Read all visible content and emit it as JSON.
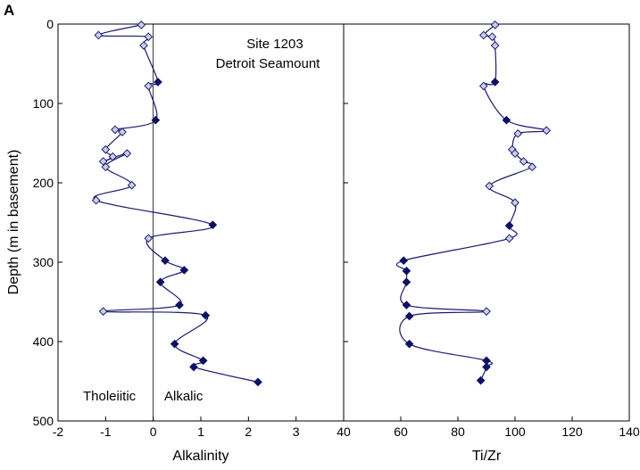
{
  "panel_label": "A",
  "chart_data": [
    {
      "type": "scatter",
      "xlabel": "Alkalinity",
      "ylabel": "Depth (m in basement)",
      "xlim": [
        -2,
        4
      ],
      "ylim": [
        500,
        0
      ],
      "x_ticks": [
        "-2",
        "-1",
        "0",
        "1",
        "2",
        "3"
      ],
      "y_ticks": [
        "0",
        "100",
        "200",
        "300",
        "400",
        "500"
      ],
      "annotations": {
        "site": "Site 1203",
        "location": "Detroit Seamount",
        "left_field": "Tholeiitic",
        "right_field": "Alkalic"
      },
      "divider_x": 0,
      "grid": false,
      "colors": {
        "line": "#1a1a6e",
        "filled_marker": "#0d1163",
        "open_marker_fill": "#c8cde6"
      },
      "series": [
        {
          "marker": "mixed diamond",
          "points": [
            {
              "x": -0.25,
              "y": 1,
              "filled": false
            },
            {
              "x": -1.15,
              "y": 14,
              "filled": false
            },
            {
              "x": -0.1,
              "y": 16,
              "filled": false
            },
            {
              "x": -0.2,
              "y": 27,
              "filled": false
            },
            {
              "x": 0.1,
              "y": 73,
              "filled": true
            },
            {
              "x": -0.1,
              "y": 78,
              "filled": false
            },
            {
              "x": 0.05,
              "y": 121,
              "filled": true
            },
            {
              "x": -0.8,
              "y": 133,
              "filled": false
            },
            {
              "x": -0.65,
              "y": 136,
              "filled": false
            },
            {
              "x": -1.0,
              "y": 158,
              "filled": false
            },
            {
              "x": -0.85,
              "y": 167,
              "filled": false
            },
            {
              "x": -1.05,
              "y": 173,
              "filled": false
            },
            {
              "x": -0.55,
              "y": 163,
              "filled": false
            },
            {
              "x": -1.0,
              "y": 180,
              "filled": false
            },
            {
              "x": -0.45,
              "y": 203,
              "filled": false
            },
            {
              "x": -1.2,
              "y": 222,
              "filled": false
            },
            {
              "x": 1.25,
              "y": 253,
              "filled": true
            },
            {
              "x": -0.1,
              "y": 270,
              "filled": false
            },
            {
              "x": 0.25,
              "y": 298,
              "filled": true
            },
            {
              "x": 0.65,
              "y": 310,
              "filled": true
            },
            {
              "x": 0.15,
              "y": 325,
              "filled": true
            },
            {
              "x": 0.55,
              "y": 354,
              "filled": true
            },
            {
              "x": -1.05,
              "y": 362,
              "filled": false
            },
            {
              "x": 1.1,
              "y": 367,
              "filled": true
            },
            {
              "x": 0.45,
              "y": 403,
              "filled": true
            },
            {
              "x": 1.05,
              "y": 424,
              "filled": true
            },
            {
              "x": 0.85,
              "y": 432,
              "filled": true
            },
            {
              "x": 2.2,
              "y": 451,
              "filled": true
            }
          ]
        }
      ]
    },
    {
      "type": "scatter",
      "xlabel": "Ti/Zr",
      "ylabel": "",
      "xlim": [
        40,
        140
      ],
      "ylim": [
        500,
        0
      ],
      "x_ticks": [
        "40",
        "60",
        "80",
        "100",
        "120",
        "140"
      ],
      "y_ticks": [],
      "grid": false,
      "colors": {
        "line": "#1a1a6e",
        "filled_marker": "#0d1163",
        "open_marker_fill": "#c8cde6"
      },
      "series": [
        {
          "marker": "mixed diamond",
          "points": [
            {
              "x": 93,
              "y": 1,
              "filled": false
            },
            {
              "x": 89,
              "y": 14,
              "filled": false
            },
            {
              "x": 92,
              "y": 16,
              "filled": false
            },
            {
              "x": 93,
              "y": 27,
              "filled": false
            },
            {
              "x": 93,
              "y": 73,
              "filled": true
            },
            {
              "x": 89,
              "y": 78,
              "filled": false
            },
            {
              "x": 97,
              "y": 121,
              "filled": true
            },
            {
              "x": 111,
              "y": 134,
              "filled": false
            },
            {
              "x": 101,
              "y": 138,
              "filled": false
            },
            {
              "x": 99,
              "y": 158,
              "filled": false
            },
            {
              "x": 100,
              "y": 163,
              "filled": false
            },
            {
              "x": 103,
              "y": 173,
              "filled": false
            },
            {
              "x": 106,
              "y": 180,
              "filled": false
            },
            {
              "x": 91,
              "y": 204,
              "filled": false
            },
            {
              "x": 100,
              "y": 225,
              "filled": false
            },
            {
              "x": 98,
              "y": 254,
              "filled": true
            },
            {
              "x": 98,
              "y": 270,
              "filled": false
            },
            {
              "x": 61,
              "y": 298,
              "filled": true
            },
            {
              "x": 62,
              "y": 311,
              "filled": true
            },
            {
              "x": 62,
              "y": 325,
              "filled": true
            },
            {
              "x": 62,
              "y": 354,
              "filled": true
            },
            {
              "x": 90,
              "y": 362,
              "filled": false
            },
            {
              "x": 63,
              "y": 368,
              "filled": true
            },
            {
              "x": 63,
              "y": 403,
              "filled": true
            },
            {
              "x": 90,
              "y": 424,
              "filled": true
            },
            {
              "x": 90,
              "y": 432,
              "filled": true
            },
            {
              "x": 88,
              "y": 449,
              "filled": true
            }
          ]
        }
      ]
    }
  ]
}
